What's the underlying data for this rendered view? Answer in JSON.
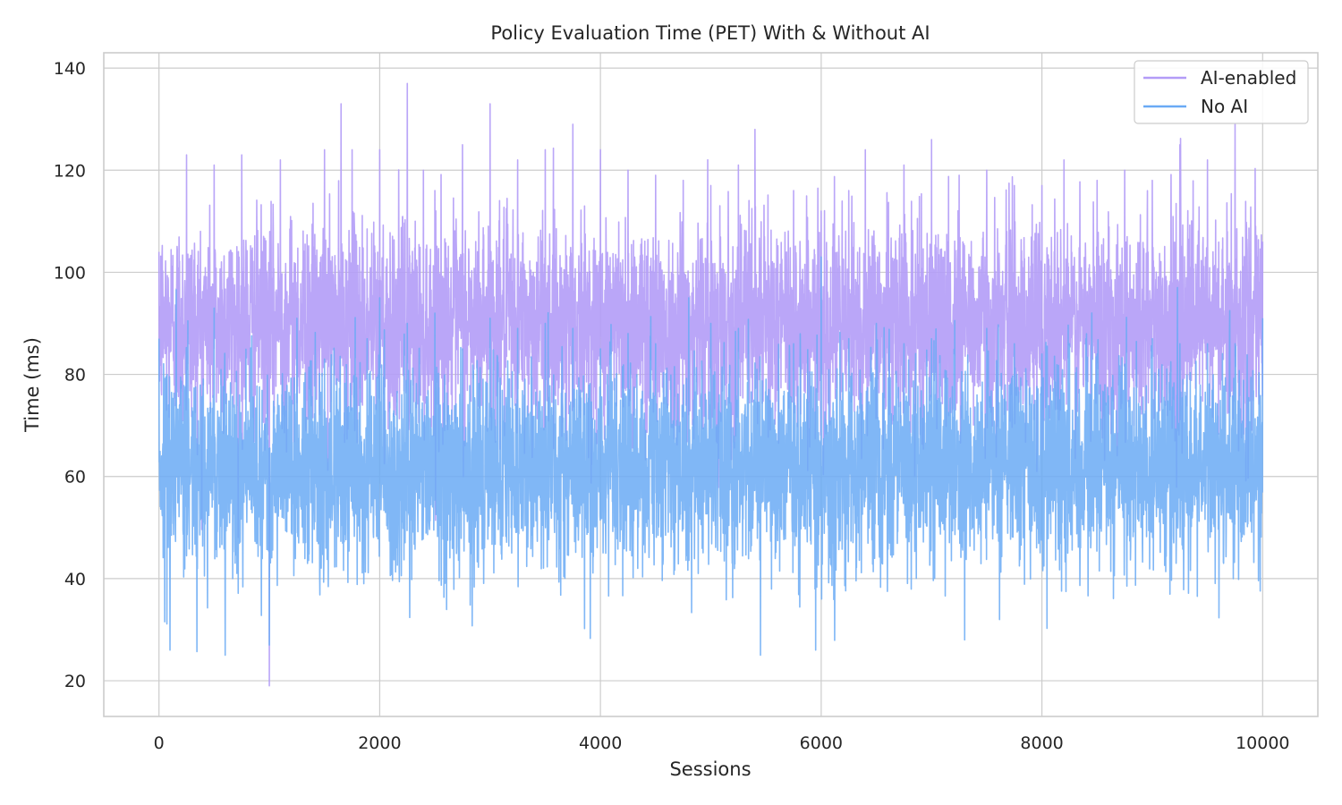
{
  "chart_data": {
    "type": "line",
    "title": "Policy Evaluation Time (PET) With & Without AI",
    "xlabel": "Sessions",
    "ylabel": "Time (ms)",
    "xlim": [
      -500,
      10500
    ],
    "ylim": [
      13,
      143
    ],
    "xticks": [
      0,
      2000,
      4000,
      6000,
      8000,
      10000
    ],
    "xtick_labels": [
      "0",
      "2000",
      "4000",
      "6000",
      "8000",
      "10000"
    ],
    "yticks": [
      20,
      40,
      60,
      80,
      100,
      120,
      140
    ],
    "ytick_labels": [
      "20",
      "40",
      "60",
      "80",
      "100",
      "120",
      "140"
    ],
    "grid": true,
    "legend": "top-right",
    "n_sessions": 10000,
    "series": [
      {
        "name": "AI-enabled",
        "color": "#b39cf7",
        "stats": {
          "mean": 90,
          "std": 10,
          "min": 19,
          "max": 137
        },
        "summary": [
          [
            0,
            104
          ],
          [
            250,
            123
          ],
          [
            500,
            121
          ],
          [
            750,
            123
          ],
          [
            1000,
            19
          ],
          [
            1100,
            122
          ],
          [
            1500,
            124
          ],
          [
            1650,
            133
          ],
          [
            1750,
            124
          ],
          [
            2000,
            124
          ],
          [
            2250,
            137
          ],
          [
            2500,
            116
          ],
          [
            2750,
            125
          ],
          [
            3000,
            133
          ],
          [
            3250,
            122
          ],
          [
            3500,
            124
          ],
          [
            3750,
            129
          ],
          [
            4000,
            124
          ],
          [
            4250,
            120
          ],
          [
            4500,
            119
          ],
          [
            4750,
            118
          ],
          [
            5000,
            117
          ],
          [
            5250,
            121
          ],
          [
            5400,
            128
          ],
          [
            5750,
            116
          ],
          [
            6000,
            112
          ],
          [
            6250,
            116
          ],
          [
            6400,
            124
          ],
          [
            6750,
            121
          ],
          [
            7000,
            126
          ],
          [
            7250,
            119
          ],
          [
            7500,
            120
          ],
          [
            7750,
            117
          ],
          [
            8000,
            117
          ],
          [
            8200,
            122
          ],
          [
            8500,
            118
          ],
          [
            8750,
            120
          ],
          [
            9000,
            118
          ],
          [
            9250,
            125
          ],
          [
            9500,
            122
          ],
          [
            9750,
            129
          ],
          [
            10000,
            106
          ]
        ]
      },
      {
        "name": "No AI",
        "color": "#6aaaf5",
        "stats": {
          "mean": 62,
          "std": 10,
          "min": 25,
          "max": 103
        },
        "summary": [
          [
            0,
            87
          ],
          [
            100,
            26
          ],
          [
            500,
            93
          ],
          [
            600,
            25
          ],
          [
            1000,
            27
          ],
          [
            1250,
            91
          ],
          [
            1500,
            83
          ],
          [
            2000,
            95
          ],
          [
            2250,
            90
          ],
          [
            2500,
            92
          ],
          [
            2750,
            85
          ],
          [
            3000,
            91
          ],
          [
            3250,
            89
          ],
          [
            3500,
            90
          ],
          [
            3750,
            89
          ],
          [
            4000,
            85
          ],
          [
            4250,
            88
          ],
          [
            4500,
            86
          ],
          [
            4800,
            95
          ],
          [
            5000,
            90
          ],
          [
            5250,
            89
          ],
          [
            5450,
            25
          ],
          [
            5750,
            86
          ],
          [
            5950,
            26
          ],
          [
            6000,
            103
          ],
          [
            6250,
            87
          ],
          [
            6500,
            90
          ],
          [
            6750,
            86
          ],
          [
            7000,
            87
          ],
          [
            7300,
            28
          ],
          [
            7500,
            89
          ],
          [
            7750,
            86
          ],
          [
            8000,
            84
          ],
          [
            8250,
            86
          ],
          [
            8500,
            84
          ],
          [
            8750,
            82
          ],
          [
            9000,
            87
          ],
          [
            9250,
            86
          ],
          [
            9500,
            86
          ],
          [
            9750,
            86
          ],
          [
            10000,
            91
          ]
        ]
      }
    ]
  }
}
